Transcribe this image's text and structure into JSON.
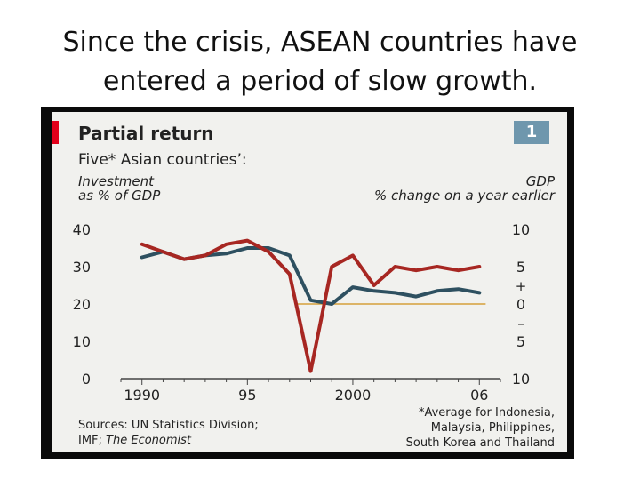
{
  "slide": {
    "title_line1": "Since the crisis, ASEAN countries have",
    "title_line2": "entered a period of slow growth."
  },
  "chart_data": {
    "type": "line",
    "title": "Partial return",
    "chart_number": "1",
    "subtitle": "Five* Asian countries’:",
    "left_axis_label_line1": "Investment",
    "left_axis_label_line2": "as % of GDP",
    "right_axis_label_line1": "GDP",
    "right_axis_label_line2": "% change on a year earlier",
    "x_ticks": [
      "1990",
      "95",
      "2000",
      "06"
    ],
    "x_tick_values": [
      1990,
      1995,
      2000,
      2006
    ],
    "xlim": [
      1989,
      2007
    ],
    "left_ylim": [
      0,
      40
    ],
    "left_ticks": [
      "0",
      "10",
      "20",
      "30",
      "40"
    ],
    "left_tick_values": [
      0,
      10,
      20,
      30,
      40
    ],
    "right_ylim": [
      -10,
      10
    ],
    "right_ticks": [
      "10",
      "5",
      "0",
      "5",
      "10"
    ],
    "right_tick_values": [
      -10,
      -5,
      0,
      5,
      10
    ],
    "right_sign_plus": "+",
    "right_sign_minus": "–",
    "series": [
      {
        "name": "Investment",
        "axis": "left",
        "color": "#2e5060",
        "x": [
          1990,
          1991,
          1992,
          1993,
          1994,
          1995,
          1996,
          1997,
          1998,
          1999,
          2000,
          2001,
          2002,
          2003,
          2004,
          2005,
          2006
        ],
        "values": [
          32.5,
          34,
          32,
          33,
          33.5,
          35,
          35,
          33,
          21,
          20,
          24.5,
          23.5,
          23,
          22,
          23.5,
          24,
          23
        ]
      },
      {
        "name": "GDP",
        "axis": "right",
        "color": "#a72722",
        "x": [
          1990,
          1991,
          1992,
          1993,
          1994,
          1995,
          1996,
          1997,
          1998,
          1999,
          2000,
          2001,
          2002,
          2003,
          2004,
          2005,
          2006
        ],
        "values": [
          8,
          7,
          6,
          6.5,
          8,
          8.5,
          7,
          4,
          -9,
          5,
          6.5,
          2.5,
          5,
          4.5,
          5,
          4.5,
          5
        ]
      }
    ],
    "zero_line_color": "#d6a03a",
    "sources_line1": "Sources: UN Statistics Division;",
    "sources_line2_prefix": "IMF; ",
    "sources_line2_italic": "The Economist",
    "footnote_line1": "*Average for Indonesia,",
    "footnote_line2": "Malaysia, Philippines,",
    "footnote_line3": "South Korea and Thailand"
  }
}
